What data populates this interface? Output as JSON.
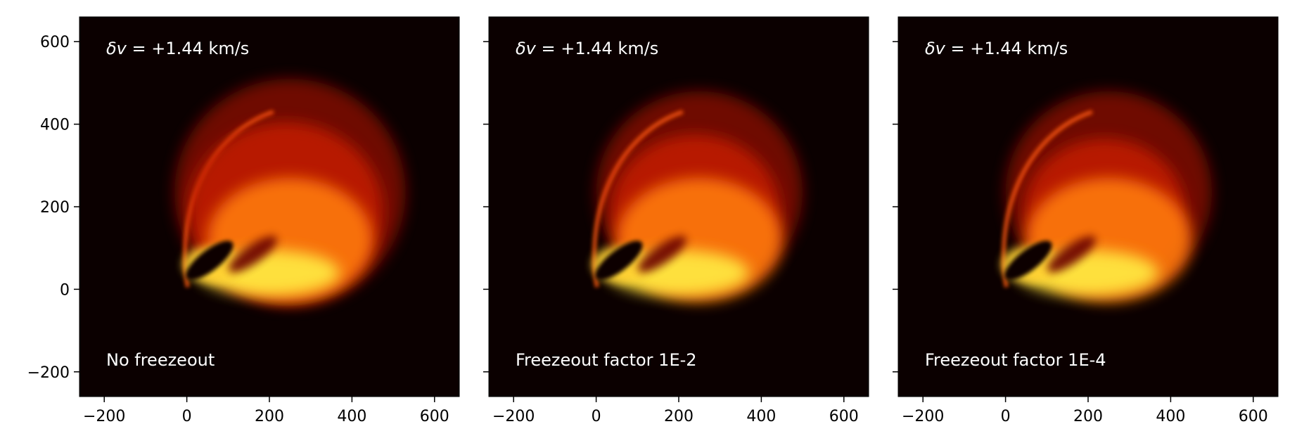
{
  "chart_data": [
    {
      "type": "heatmap",
      "xlim": [
        -260,
        660
      ],
      "ylim": [
        -260,
        660
      ],
      "x_ticks": [
        -200,
        0,
        200,
        400,
        600
      ],
      "y_ticks": [
        -200,
        0,
        200,
        400,
        600
      ],
      "x_tick_labels": [
        "−200",
        "0",
        "200",
        "400",
        "600"
      ],
      "y_tick_labels": [
        "−200",
        "0",
        "200",
        "400",
        "600"
      ],
      "show_y_tick_labels": true,
      "colormap": "hot",
      "background_color": "#0b0000",
      "velocity_label": {
        "symbol": "δv",
        "text": " = +1.44 km/s"
      },
      "panel_label": "No freezeout",
      "freezeout": "none"
    },
    {
      "type": "heatmap",
      "xlim": [
        -260,
        660
      ],
      "ylim": [
        -260,
        660
      ],
      "x_ticks": [
        -200,
        0,
        200,
        400,
        600
      ],
      "y_ticks": [
        -200,
        0,
        200,
        400,
        600
      ],
      "x_tick_labels": [
        "−200",
        "0",
        "200",
        "400",
        "600"
      ],
      "y_tick_labels": [],
      "show_y_tick_labels": false,
      "colormap": "hot",
      "background_color": "#0b0000",
      "velocity_label": {
        "symbol": "δv",
        "text": " = +1.44 km/s"
      },
      "panel_label": "Freezeout factor 1E-2",
      "freezeout": "1E-2"
    },
    {
      "type": "heatmap",
      "xlim": [
        -260,
        660
      ],
      "ylim": [
        -260,
        660
      ],
      "x_ticks": [
        -200,
        0,
        200,
        400,
        600
      ],
      "y_ticks": [
        -200,
        0,
        200,
        400,
        600
      ],
      "x_tick_labels": [
        "−200",
        "0",
        "200",
        "400",
        "600"
      ],
      "y_tick_labels": [],
      "show_y_tick_labels": false,
      "colormap": "hot",
      "background_color": "#0b0000",
      "velocity_label": {
        "symbol": "δv",
        "text": " = +1.44 km/s"
      },
      "panel_label": "Freezeout factor 1E-4",
      "freezeout": "1E-4"
    }
  ]
}
